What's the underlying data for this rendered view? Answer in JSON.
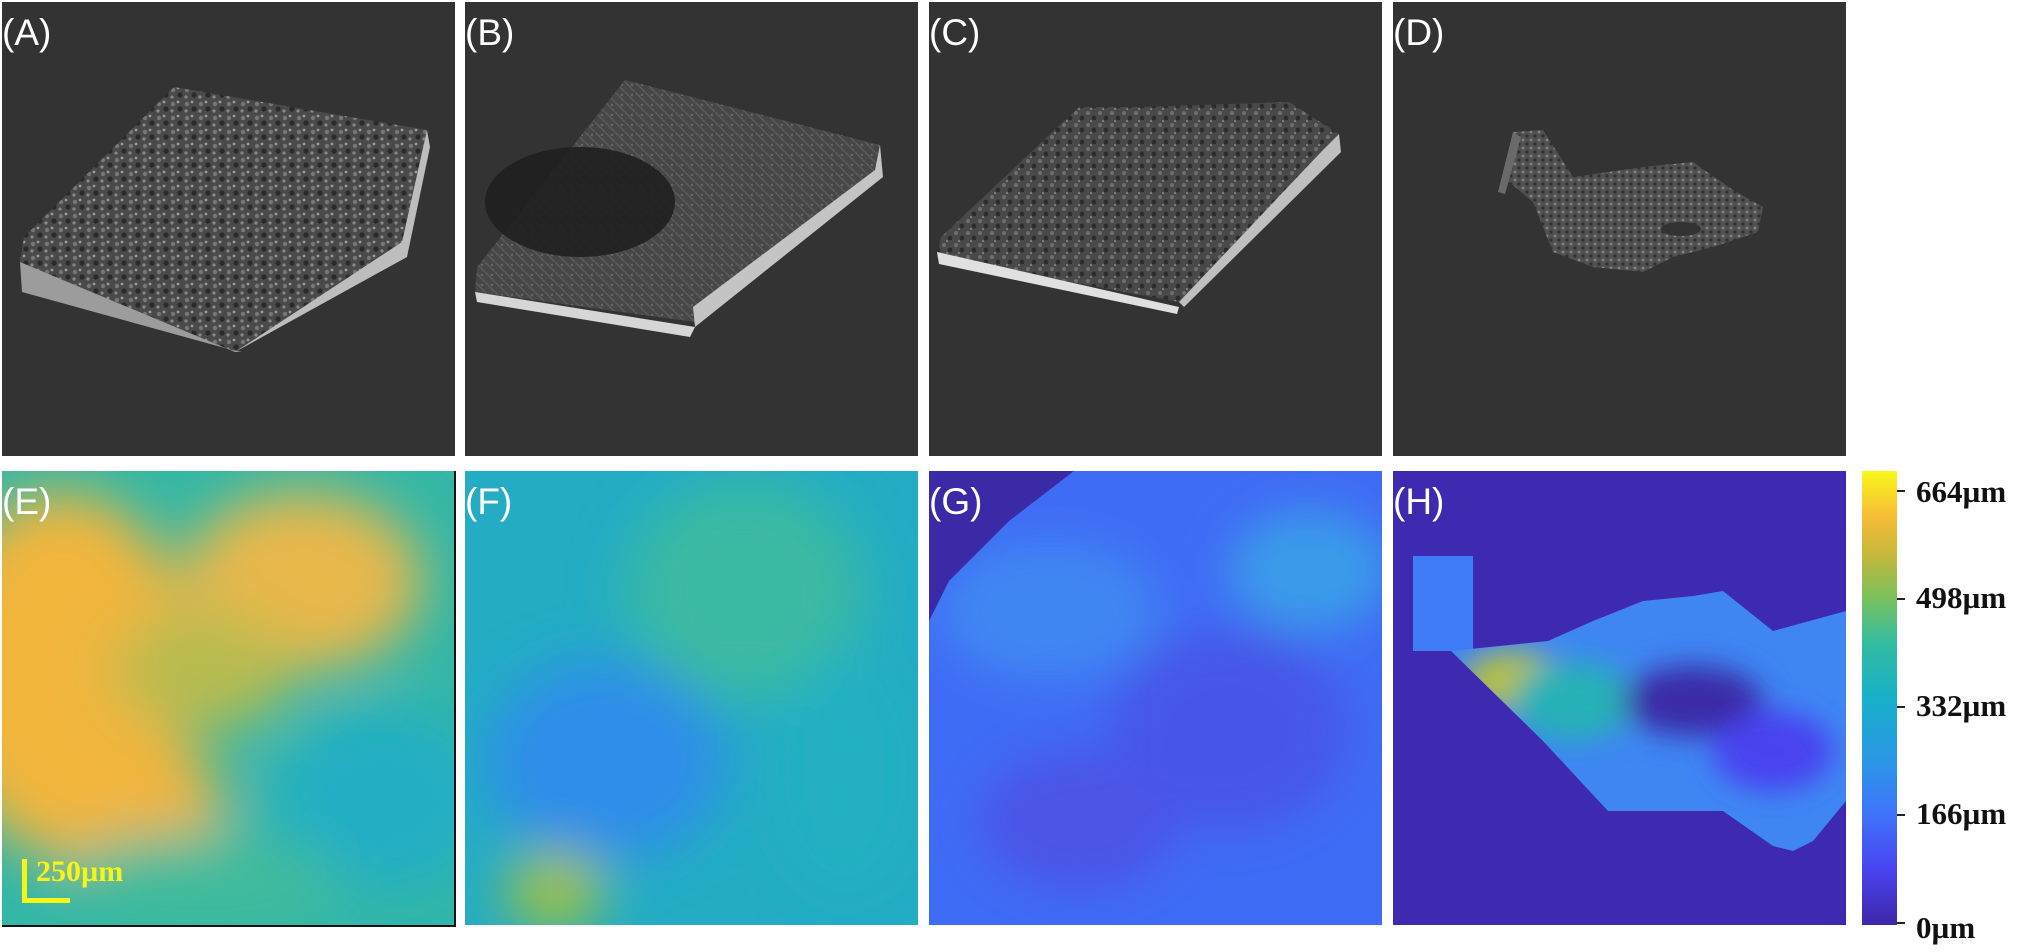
{
  "panels": {
    "A": "(A)",
    "B": "(B)",
    "C": "(C)",
    "D": "(D)",
    "E": "(E)",
    "F": "(F)",
    "G": "(G)",
    "H": "(H)"
  },
  "colorbar": {
    "labels": [
      "664µm",
      "498µm",
      "332µm",
      "166µm",
      "0µm"
    ],
    "colors": {
      "min": "#3d26a8",
      "low": "#4a43f0",
      "mid": "#18b0c9",
      "high": "#f6bd36",
      "max": "#f9f71c"
    }
  },
  "scalebar": {
    "label": "250µm",
    "color": "#f5f51a"
  }
}
